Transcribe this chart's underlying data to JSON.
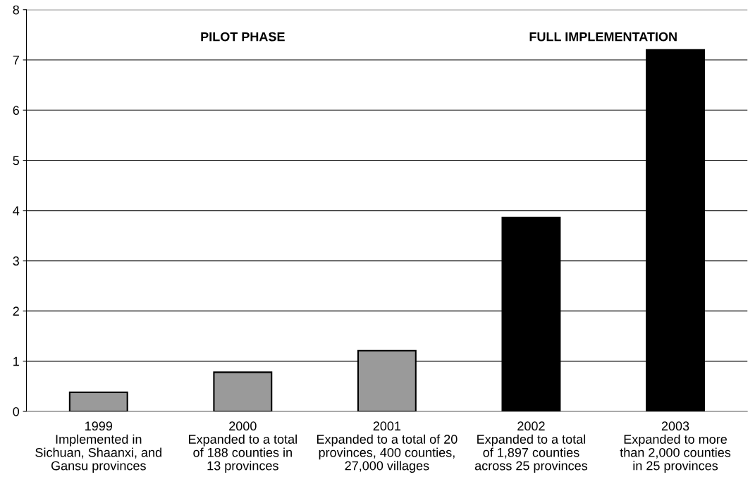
{
  "chart_data": {
    "type": "bar",
    "categories": [
      "1999\nImplemented in\nSichuan, Shaanxi, and\nGansu provinces",
      "2000\nExpanded to a total\nof 188 counties in\n13 provinces",
      "2001\nExpanded to a total of 20\nprovinces, 400 counties,\n27,000 villages",
      "2002\nExpanded to a total\nof 1,897 counties\nacross 25 provinces",
      "2003\nExpanded to more\nthan 2,000 counties\nin 25 provinces"
    ],
    "values": [
      0.38,
      0.78,
      1.21,
      3.86,
      7.2
    ],
    "colors": [
      "#9a9a9a",
      "#9a9a9a",
      "#9a9a9a",
      "#000000",
      "#000000"
    ],
    "ylim": [
      0,
      8
    ],
    "yticks": [
      0,
      1,
      2,
      3,
      4,
      5,
      6,
      7,
      8
    ],
    "grid": "y",
    "annotations": [
      "PILOT PHASE",
      "FULL IMPLEMENTATION"
    ]
  }
}
